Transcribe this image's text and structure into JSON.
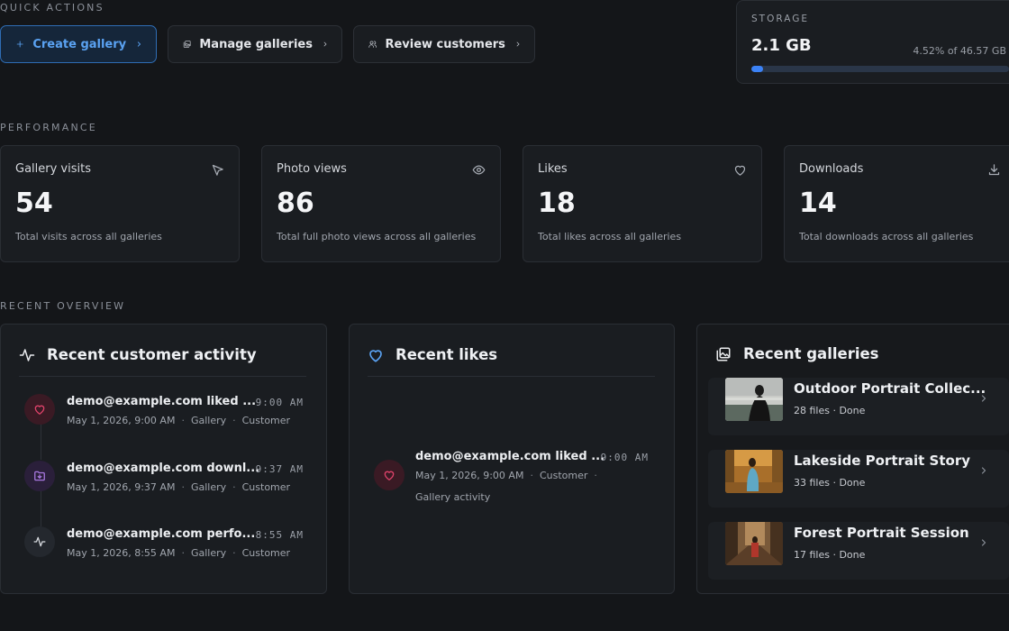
{
  "quick_actions": {
    "label": "QUICK ACTIONS",
    "buttons": [
      {
        "label": "Create gallery",
        "icon": "plus-icon"
      },
      {
        "label": "Manage galleries",
        "icon": "gallery-icon"
      },
      {
        "label": "Review customers",
        "icon": "users-icon"
      }
    ]
  },
  "storage": {
    "label": "STORAGE",
    "used": "2.1 GB",
    "detail": "4.52% of 46.57 GB",
    "percent": 4.52
  },
  "performance": {
    "label": "PERFORMANCE",
    "metrics": [
      {
        "title": "Gallery visits",
        "value": "54",
        "description": "Total visits across all galleries",
        "icon": "cursor-icon"
      },
      {
        "title": "Photo views",
        "value": "86",
        "description": "Total full photo views across all galleries",
        "icon": "eye-icon"
      },
      {
        "title": "Likes",
        "value": "18",
        "description": "Total likes across all galleries",
        "icon": "heart-icon"
      },
      {
        "title": "Downloads",
        "value": "14",
        "description": "Total downloads across all galleries",
        "icon": "download-icon"
      }
    ]
  },
  "overview": {
    "label": "RECENT OVERVIEW",
    "activity": {
      "title": "Recent customer activity",
      "items": [
        {
          "title": "demo@example.com liked ...",
          "time": "9:00 AM",
          "date": "May 1, 2026, 9:00 AM",
          "tag1": "Gallery",
          "tag2": "Customer",
          "icon": "heart-icon"
        },
        {
          "title": "demo@example.com downl...",
          "time": "9:37 AM",
          "date": "May 1, 2026, 9:37 AM",
          "tag1": "Gallery",
          "tag2": "Customer",
          "icon": "folder-download-icon"
        },
        {
          "title": "demo@example.com perfo...",
          "time": "8:55 AM",
          "date": "May 1, 2026, 8:55 AM",
          "tag1": "Gallery",
          "tag2": "Customer",
          "icon": "activity-icon"
        }
      ]
    },
    "likes": {
      "title": "Recent likes",
      "item": {
        "title": "demo@example.com liked ...",
        "time": "9:00 AM",
        "date": "May 1, 2026, 9:00 AM",
        "tag1": "Customer",
        "tag2": "Gallery activity"
      }
    },
    "galleries": {
      "title": "Recent galleries",
      "items": [
        {
          "title": "Outdoor Portrait Collec...",
          "meta": "28 files · Done"
        },
        {
          "title": "Lakeside Portrait Story",
          "meta": "33 files · Done"
        },
        {
          "title": "Forest Portrait Session",
          "meta": "17 files · Done"
        }
      ]
    }
  },
  "colors": {
    "accent": "#3b82f6",
    "like": "#e0436b",
    "download": "#a878e0"
  }
}
